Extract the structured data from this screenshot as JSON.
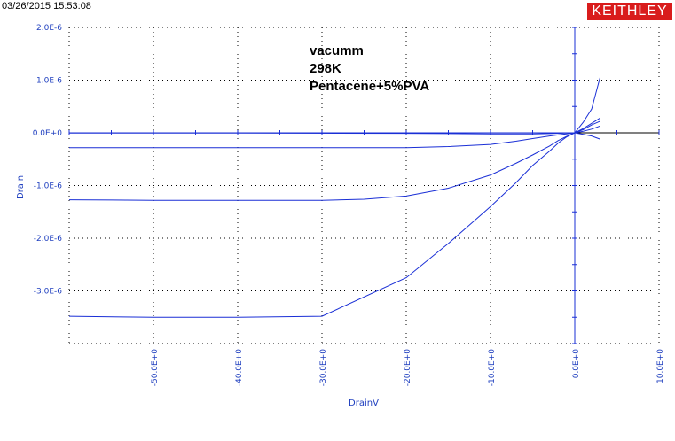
{
  "timestamp": "03/26/2015 15:53:08",
  "brand": "KEITHLEY",
  "colors": {
    "series": "#1a2fd6",
    "grid": "#000000",
    "axis": "#1a2fd6",
    "tick_text": "#1f3fbf",
    "brand_bg": "#d91c1c"
  },
  "chart_data": {
    "type": "line",
    "xlabel": "DrainV",
    "ylabel": "DrainI",
    "xlim": [
      -60,
      10
    ],
    "ylim": [
      -4e-06,
      2e-06
    ],
    "x_ticks": [
      -50,
      -40,
      -30,
      -20,
      -10,
      0,
      10
    ],
    "x_tick_labels": [
      "-50.0E+0",
      "-40.0E+0",
      "-30.0E+0",
      "-20.0E+0",
      "-10.0E+0",
      "0.0E+0",
      "10.0E+0"
    ],
    "y_ticks": [
      2e-06,
      1e-06,
      0,
      -1e-06,
      -2e-06,
      -3e-06
    ],
    "y_tick_labels": [
      "2.0E-6",
      "1.0E-6",
      "0.0E+0",
      "-1.0E-6",
      "-2.0E-6",
      "-3.0E-6"
    ],
    "grid": true,
    "annotations": [
      "vacumm",
      "298K",
      "Pentacene+5%PVA"
    ],
    "series": [
      {
        "x": [
          -60,
          -50,
          -40,
          -30,
          -20,
          -15,
          -10,
          -7,
          -5,
          -3,
          -2,
          -1,
          0,
          1,
          2,
          3
        ],
        "y": [
          -3.48e-06,
          -3.5e-06,
          -3.5e-06,
          -3.48e-06,
          -2.75e-06,
          -2.1e-06,
          -1.4e-06,
          -9.5e-07,
          -6.2e-07,
          -3.5e-07,
          -2e-07,
          -8e-08,
          0.0,
          2e-07,
          4.5e-07,
          1.05e-06
        ]
      },
      {
        "x": [
          -60,
          -50,
          -40,
          -30,
          -25,
          -20,
          -15,
          -10,
          -7,
          -5,
          -3,
          -2,
          -1,
          0,
          1,
          2,
          3
        ],
        "y": [
          -1.27e-06,
          -1.28e-06,
          -1.28e-06,
          -1.28e-06,
          -1.26e-06,
          -1.2e-06,
          -1.05e-06,
          -8e-07,
          -5.8e-07,
          -4.2e-07,
          -2.5e-07,
          -1.5e-07,
          -7e-08,
          0.0,
          8e-08,
          1.8e-07,
          2.8e-07
        ]
      },
      {
        "x": [
          -60,
          -50,
          -40,
          -30,
          -20,
          -15,
          -10,
          -7,
          -5,
          -3,
          -1,
          0,
          1,
          2,
          3
        ],
        "y": [
          -2.8e-07,
          -2.8e-07,
          -2.8e-07,
          -2.8e-07,
          -2.8e-07,
          -2.6e-07,
          -2.2e-07,
          -1.6e-07,
          -1.1e-07,
          -6e-08,
          -2e-08,
          0.0,
          6e-08,
          1.5e-07,
          2.2e-07
        ]
      },
      {
        "x": [
          -60,
          -40,
          -20,
          -10,
          -5,
          -2,
          0,
          1,
          2,
          3
        ],
        "y": [
          -5e-09,
          -5e-09,
          -1e-08,
          -2e-08,
          -2e-08,
          -1e-08,
          0.0,
          3e-08,
          7e-08,
          1.3e-07
        ]
      },
      {
        "x": [
          -60,
          -40,
          -20,
          -10,
          -5,
          -2,
          0,
          1,
          2,
          3
        ],
        "y": [
          0,
          0,
          0,
          0,
          0,
          0,
          0,
          -3e-08,
          -6e-08,
          -1.2e-07
        ]
      }
    ]
  }
}
